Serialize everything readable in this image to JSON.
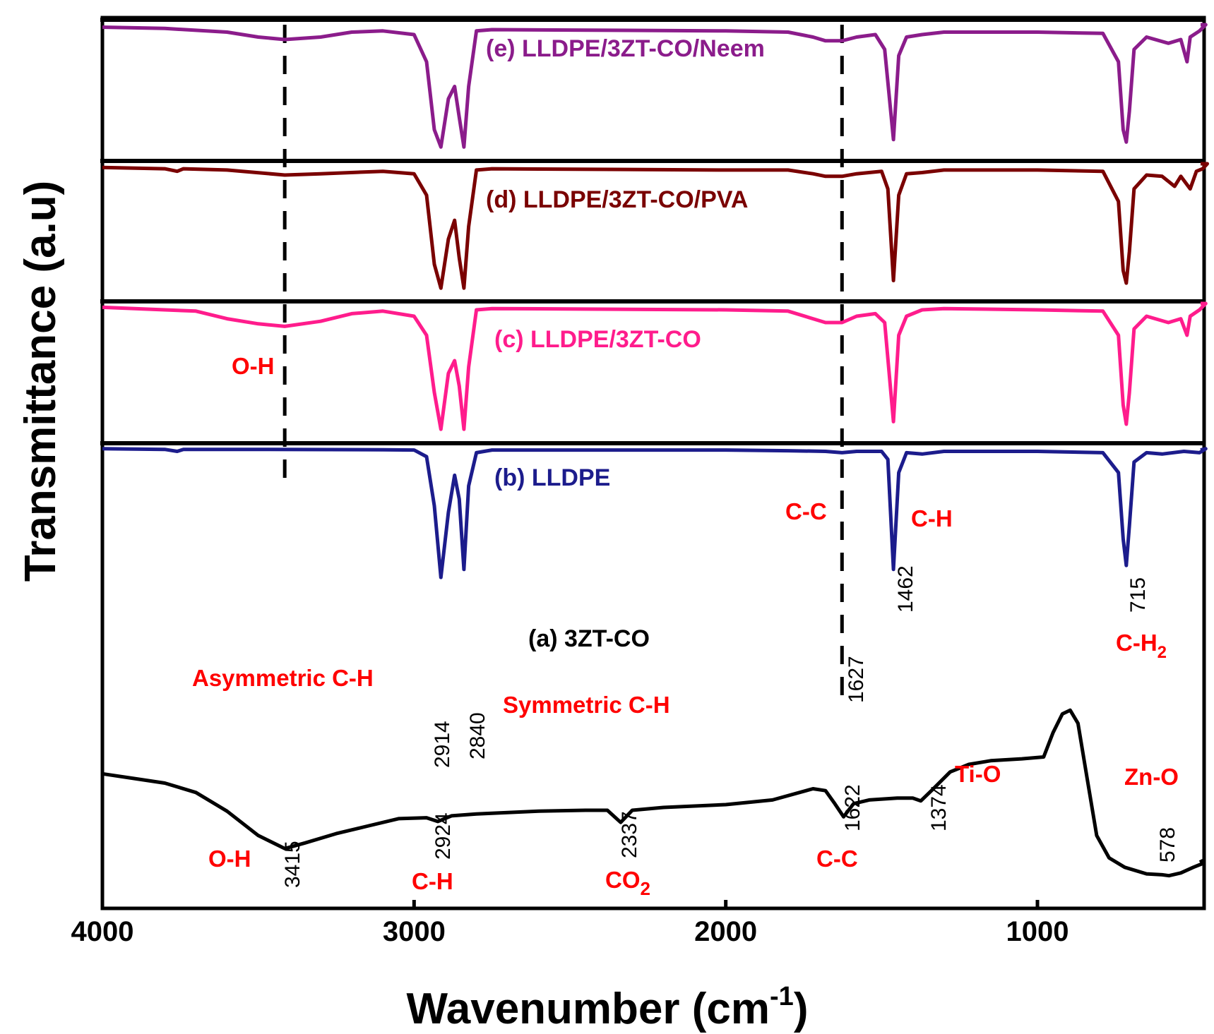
{
  "chart_data": {
    "type": "line",
    "title": "",
    "xlabel": "Wavenumber (cm",
    "xlabel_sup": "-1",
    "xlabel_end": ")",
    "ylabel": "Transmittance (a.u)",
    "xlim": [
      4000,
      450
    ],
    "x_reversed": true,
    "x_ticks": [
      "4000",
      "3000",
      "2000",
      "1000"
    ],
    "reference_lines": [
      3415,
      1627
    ],
    "series": [
      {
        "name": "(a) 3ZT-CO",
        "color": "#000000",
        "points": [
          [
            4000,
            0.42
          ],
          [
            3900,
            0.445
          ],
          [
            3800,
            0.47
          ],
          [
            3700,
            0.52
          ],
          [
            3600,
            0.62
          ],
          [
            3500,
            0.75
          ],
          [
            3415,
            0.82
          ],
          [
            3350,
            0.79
          ],
          [
            3250,
            0.74
          ],
          [
            3150,
            0.7
          ],
          [
            3050,
            0.66
          ],
          [
            2960,
            0.655
          ],
          [
            2924,
            0.675
          ],
          [
            2880,
            0.645
          ],
          [
            2800,
            0.635
          ],
          [
            2600,
            0.62
          ],
          [
            2450,
            0.615
          ],
          [
            2380,
            0.615
          ],
          [
            2337,
            0.68
          ],
          [
            2300,
            0.615
          ],
          [
            2200,
            0.6
          ],
          [
            2000,
            0.585
          ],
          [
            1850,
            0.56
          ],
          [
            1720,
            0.5
          ],
          [
            1680,
            0.51
          ],
          [
            1650,
            0.58
          ],
          [
            1622,
            0.65
          ],
          [
            1590,
            0.58
          ],
          [
            1540,
            0.56
          ],
          [
            1450,
            0.55
          ],
          [
            1400,
            0.55
          ],
          [
            1374,
            0.565
          ],
          [
            1340,
            0.51
          ],
          [
            1280,
            0.41
          ],
          [
            1220,
            0.37
          ],
          [
            1150,
            0.35
          ],
          [
            1050,
            0.34
          ],
          [
            980,
            0.33
          ],
          [
            950,
            0.2
          ],
          [
            920,
            0.1
          ],
          [
            895,
            0.08
          ],
          [
            870,
            0.15
          ],
          [
            840,
            0.45
          ],
          [
            810,
            0.75
          ],
          [
            770,
            0.87
          ],
          [
            720,
            0.92
          ],
          [
            650,
            0.955
          ],
          [
            600,
            0.96
          ],
          [
            578,
            0.965
          ],
          [
            540,
            0.95
          ],
          [
            500,
            0.92
          ],
          [
            470,
            0.9
          ],
          [
            450,
            0.88
          ]
        ]
      },
      {
        "name": "(b) LLDPE",
        "color": "#1c1c8c",
        "points": [
          [
            4000,
            0.02
          ],
          [
            3800,
            0.025
          ],
          [
            3760,
            0.04
          ],
          [
            3740,
            0.025
          ],
          [
            3500,
            0.025
          ],
          [
            3100,
            0.028
          ],
          [
            3000,
            0.03
          ],
          [
            2960,
            0.08
          ],
          [
            2935,
            0.45
          ],
          [
            2914,
            0.99
          ],
          [
            2890,
            0.5
          ],
          [
            2870,
            0.22
          ],
          [
            2855,
            0.4
          ],
          [
            2840,
            0.93
          ],
          [
            2825,
            0.3
          ],
          [
            2800,
            0.05
          ],
          [
            2750,
            0.03
          ],
          [
            2000,
            0.03
          ],
          [
            1800,
            0.035
          ],
          [
            1680,
            0.04
          ],
          [
            1627,
            0.05
          ],
          [
            1580,
            0.04
          ],
          [
            1500,
            0.04
          ],
          [
            1480,
            0.1
          ],
          [
            1462,
            0.93
          ],
          [
            1445,
            0.2
          ],
          [
            1420,
            0.05
          ],
          [
            1370,
            0.06
          ],
          [
            1300,
            0.04
          ],
          [
            1000,
            0.04
          ],
          [
            790,
            0.05
          ],
          [
            740,
            0.2
          ],
          [
            725,
            0.7
          ],
          [
            715,
            0.9
          ],
          [
            705,
            0.6
          ],
          [
            690,
            0.12
          ],
          [
            650,
            0.05
          ],
          [
            600,
            0.06
          ],
          [
            530,
            0.04
          ],
          [
            480,
            0.05
          ],
          [
            460,
            0.02
          ],
          [
            450,
            0.03
          ]
        ]
      },
      {
        "name": "(c) LLDPE/3ZT-CO",
        "color": "#ff1c8c",
        "points": [
          [
            4000,
            0.03
          ],
          [
            3800,
            0.05
          ],
          [
            3700,
            0.06
          ],
          [
            3600,
            0.12
          ],
          [
            3500,
            0.16
          ],
          [
            3415,
            0.18
          ],
          [
            3300,
            0.14
          ],
          [
            3200,
            0.08
          ],
          [
            3100,
            0.06
          ],
          [
            3000,
            0.1
          ],
          [
            2960,
            0.25
          ],
          [
            2935,
            0.7
          ],
          [
            2914,
            0.99
          ],
          [
            2890,
            0.55
          ],
          [
            2870,
            0.45
          ],
          [
            2855,
            0.65
          ],
          [
            2840,
            0.99
          ],
          [
            2825,
            0.5
          ],
          [
            2800,
            0.05
          ],
          [
            2750,
            0.04
          ],
          [
            2000,
            0.05
          ],
          [
            1800,
            0.06
          ],
          [
            1720,
            0.12
          ],
          [
            1680,
            0.15
          ],
          [
            1627,
            0.15
          ],
          [
            1580,
            0.1
          ],
          [
            1520,
            0.08
          ],
          [
            1490,
            0.15
          ],
          [
            1462,
            0.93
          ],
          [
            1445,
            0.25
          ],
          [
            1420,
            0.1
          ],
          [
            1370,
            0.05
          ],
          [
            1300,
            0.04
          ],
          [
            1000,
            0.05
          ],
          [
            790,
            0.06
          ],
          [
            740,
            0.25
          ],
          [
            725,
            0.8
          ],
          [
            715,
            0.95
          ],
          [
            705,
            0.7
          ],
          [
            690,
            0.2
          ],
          [
            650,
            0.1
          ],
          [
            580,
            0.15
          ],
          [
            540,
            0.12
          ],
          [
            520,
            0.25
          ],
          [
            510,
            0.1
          ],
          [
            480,
            0.05
          ],
          [
            460,
            0.0
          ],
          [
            450,
            0.0
          ]
        ]
      },
      {
        "name": "(d) LLDPE/3ZT-CO/PVA",
        "color": "#7a0000",
        "points": [
          [
            4000,
            0.03
          ],
          [
            3800,
            0.04
          ],
          [
            3760,
            0.06
          ],
          [
            3740,
            0.04
          ],
          [
            3600,
            0.05
          ],
          [
            3415,
            0.09
          ],
          [
            3300,
            0.08
          ],
          [
            3100,
            0.06
          ],
          [
            3000,
            0.08
          ],
          [
            2960,
            0.25
          ],
          [
            2935,
            0.8
          ],
          [
            2914,
            0.99
          ],
          [
            2890,
            0.6
          ],
          [
            2870,
            0.45
          ],
          [
            2855,
            0.75
          ],
          [
            2840,
            0.99
          ],
          [
            2825,
            0.5
          ],
          [
            2800,
            0.05
          ],
          [
            2750,
            0.04
          ],
          [
            2000,
            0.05
          ],
          [
            1800,
            0.05
          ],
          [
            1720,
            0.08
          ],
          [
            1680,
            0.1
          ],
          [
            1627,
            0.1
          ],
          [
            1580,
            0.08
          ],
          [
            1500,
            0.06
          ],
          [
            1480,
            0.2
          ],
          [
            1462,
            0.93
          ],
          [
            1445,
            0.25
          ],
          [
            1420,
            0.08
          ],
          [
            1370,
            0.07
          ],
          [
            1300,
            0.05
          ],
          [
            1000,
            0.05
          ],
          [
            790,
            0.06
          ],
          [
            740,
            0.3
          ],
          [
            725,
            0.85
          ],
          [
            715,
            0.95
          ],
          [
            705,
            0.7
          ],
          [
            690,
            0.2
          ],
          [
            650,
            0.09
          ],
          [
            600,
            0.1
          ],
          [
            560,
            0.18
          ],
          [
            540,
            0.1
          ],
          [
            510,
            0.2
          ],
          [
            490,
            0.06
          ],
          [
            470,
            0.04
          ],
          [
            455,
            0.0
          ],
          [
            450,
            0.0
          ]
        ]
      },
      {
        "name": "(e) LLDPE/3ZT-CO/Neem",
        "color": "#8b1c8b",
        "points": [
          [
            4000,
            0.02
          ],
          [
            3800,
            0.03
          ],
          [
            3600,
            0.06
          ],
          [
            3500,
            0.1
          ],
          [
            3415,
            0.12
          ],
          [
            3300,
            0.1
          ],
          [
            3200,
            0.06
          ],
          [
            3100,
            0.05
          ],
          [
            3000,
            0.08
          ],
          [
            2960,
            0.3
          ],
          [
            2935,
            0.85
          ],
          [
            2914,
            0.99
          ],
          [
            2890,
            0.6
          ],
          [
            2870,
            0.5
          ],
          [
            2855,
            0.75
          ],
          [
            2840,
            0.99
          ],
          [
            2825,
            0.5
          ],
          [
            2800,
            0.05
          ],
          [
            2750,
            0.04
          ],
          [
            2000,
            0.05
          ],
          [
            1800,
            0.06
          ],
          [
            1720,
            0.1
          ],
          [
            1680,
            0.13
          ],
          [
            1627,
            0.13
          ],
          [
            1580,
            0.1
          ],
          [
            1520,
            0.08
          ],
          [
            1490,
            0.2
          ],
          [
            1462,
            0.93
          ],
          [
            1445,
            0.25
          ],
          [
            1420,
            0.1
          ],
          [
            1370,
            0.08
          ],
          [
            1300,
            0.06
          ],
          [
            1000,
            0.06
          ],
          [
            790,
            0.07
          ],
          [
            740,
            0.3
          ],
          [
            725,
            0.85
          ],
          [
            715,
            0.95
          ],
          [
            705,
            0.7
          ],
          [
            690,
            0.2
          ],
          [
            650,
            0.1
          ],
          [
            580,
            0.15
          ],
          [
            540,
            0.12
          ],
          [
            520,
            0.3
          ],
          [
            510,
            0.1
          ],
          [
            480,
            0.05
          ],
          [
            460,
            0.0
          ],
          [
            450,
            0.0
          ]
        ]
      }
    ],
    "band_labels": [
      "O-H",
      "O-H",
      "C-H",
      "CO",
      "C-C",
      "C-C",
      "C-H",
      "Asymmetric C-H",
      "Symmetric C-H",
      "Ti-O",
      "Zn-O",
      "C-H"
    ],
    "band_subscripts": {
      "CO": "2",
      "C-H2": "2"
    },
    "peak_labels": [
      "3415",
      "2924",
      "2914",
      "2840",
      "2337",
      "1627",
      "1622",
      "1462",
      "1374",
      "715",
      "578"
    ]
  }
}
